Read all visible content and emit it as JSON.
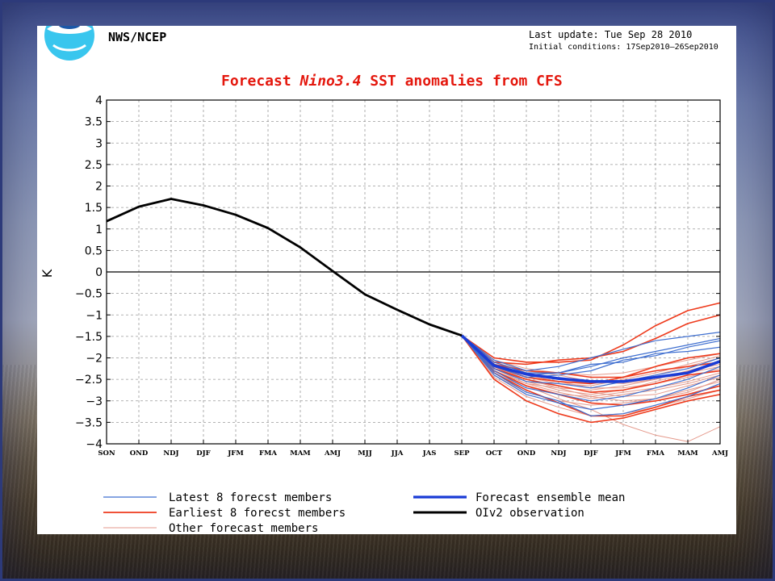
{
  "header": {
    "agency": "NWS/NCEP",
    "last_update": "Last update: Tue Sep 28 2010",
    "initial_conditions": "Initial conditions: 17Sep2010–26Sep2010"
  },
  "chart_data": {
    "type": "line",
    "title_part1": "Forecast ",
    "title_part2": "Nino3.4",
    "title_part3": " SST anomalies from CFS",
    "ylabel": "K",
    "ylim": [
      -4,
      4
    ],
    "yticks": [
      4,
      3.5,
      3,
      2.5,
      2,
      1.5,
      1,
      0.5,
      0,
      -0.5,
      -1,
      -1.5,
      -2,
      -2.5,
      -3,
      -3.5,
      -4
    ],
    "ytick_labels": [
      "4",
      "3.5",
      "3",
      "2.5",
      "2",
      "1.5",
      "1",
      "0.5",
      "0",
      "−0.5",
      "−1",
      "−1.5",
      "−2",
      "−2.5",
      "−3",
      "−3.5",
      "−4"
    ],
    "categories": [
      "SON",
      "OND",
      "NDJ",
      "DJF",
      "JFM",
      "FMA",
      "MAM",
      "AMJ",
      "MJJ",
      "JJA",
      "JAS",
      "SEP",
      "OCT",
      "OND",
      "NDJ",
      "DJF",
      "JFM",
      "FMA",
      "MAM",
      "AMJ"
    ],
    "grid": true,
    "legend_position": "bottom",
    "colors": {
      "observation": "#000000",
      "ensemble_mean": "#1a3cd6",
      "latest": "#3f6fd0",
      "earliest": "#ee3a1c",
      "other": "#e59a8c"
    },
    "legend": [
      {
        "key": "latest",
        "label": "Latest 8 forecst members"
      },
      {
        "key": "earliest",
        "label": "Earliest 8 forecst members"
      },
      {
        "key": "other",
        "label": "Other forecast members"
      },
      {
        "key": "ensemble_mean",
        "label": "Forecast ensemble mean"
      },
      {
        "key": "observation",
        "label": "OIv2 observation"
      }
    ],
    "forecast_x": [
      11,
      12,
      13,
      14,
      15,
      16,
      17,
      18,
      19
    ],
    "observation": {
      "name": "OIv2 observation",
      "values": [
        1.18,
        1.52,
        1.7,
        1.55,
        1.33,
        1.02,
        0.57,
        0.02,
        -0.52,
        -0.88,
        -1.22,
        -1.48
      ]
    },
    "ensemble_mean": {
      "name": "Forecast ensemble mean",
      "values": [
        -1.48,
        -2.18,
        -2.38,
        -2.48,
        -2.55,
        -2.55,
        -2.45,
        -2.35,
        -2.08
      ]
    },
    "latest_members": [
      [
        -1.48,
        -2.05,
        -2.3,
        -2.2,
        -2.0,
        -1.8,
        -1.6,
        -1.5,
        -1.4
      ],
      [
        -1.48,
        -2.15,
        -2.4,
        -2.35,
        -2.2,
        -2.0,
        -1.85,
        -1.7,
        -1.55
      ],
      [
        -1.48,
        -2.25,
        -2.55,
        -2.6,
        -2.7,
        -2.55,
        -2.4,
        -2.25,
        -2.0
      ],
      [
        -1.48,
        -2.3,
        -2.7,
        -2.85,
        -3.0,
        -2.9,
        -2.7,
        -2.5,
        -2.2
      ],
      [
        -1.48,
        -2.4,
        -2.85,
        -3.05,
        -3.2,
        -3.1,
        -2.95,
        -2.7,
        -2.4
      ],
      [
        -1.48,
        -2.35,
        -2.8,
        -3.0,
        -3.35,
        -3.3,
        -3.1,
        -2.9,
        -2.6
      ],
      [
        -1.48,
        -2.2,
        -2.45,
        -2.4,
        -2.3,
        -2.05,
        -1.95,
        -1.75,
        -1.6
      ],
      [
        -1.48,
        -2.1,
        -2.35,
        -2.35,
        -2.15,
        -2.1,
        -1.9,
        -1.85,
        -1.75
      ]
    ],
    "earliest_members": [
      [
        -1.48,
        -2.0,
        -2.1,
        -2.1,
        -2.05,
        -1.7,
        -1.25,
        -0.9,
        -0.72
      ],
      [
        -1.48,
        -2.1,
        -2.15,
        -2.05,
        -2.0,
        -1.85,
        -1.55,
        -1.2,
        -1.0
      ],
      [
        -1.48,
        -2.2,
        -2.45,
        -2.55,
        -2.6,
        -2.45,
        -2.2,
        -2.0,
        -1.9
      ],
      [
        -1.48,
        -2.35,
        -2.75,
        -3.05,
        -3.35,
        -3.35,
        -3.15,
        -2.9,
        -2.75
      ],
      [
        -1.48,
        -2.5,
        -3.0,
        -3.3,
        -3.5,
        -3.4,
        -3.2,
        -3.0,
        -2.85
      ],
      [
        -1.48,
        -2.25,
        -2.5,
        -2.65,
        -2.8,
        -2.75,
        -2.6,
        -2.4,
        -2.3
      ],
      [
        -1.48,
        -2.15,
        -2.3,
        -2.35,
        -2.45,
        -2.45,
        -2.3,
        -2.2,
        -2.1
      ],
      [
        -1.48,
        -2.3,
        -2.65,
        -2.85,
        -3.05,
        -3.1,
        -3.0,
        -2.85,
        -2.65
      ]
    ],
    "other_members": [
      [
        -1.48,
        -2.2,
        -2.5,
        -2.7,
        -2.9,
        -3.0,
        -2.95,
        -2.8,
        -2.5
      ],
      [
        -1.48,
        -2.3,
        -2.65,
        -2.95,
        -3.2,
        -3.55,
        -3.8,
        -3.95,
        -3.6
      ],
      [
        -1.48,
        -2.1,
        -2.3,
        -2.4,
        -2.55,
        -2.6,
        -2.5,
        -2.3,
        -2.1
      ],
      [
        -1.48,
        -2.25,
        -2.6,
        -2.8,
        -2.95,
        -2.85,
        -2.75,
        -2.6,
        -2.4
      ],
      [
        -1.48,
        -2.15,
        -2.4,
        -2.55,
        -2.7,
        -2.7,
        -2.6,
        -2.45,
        -2.25
      ],
      [
        -1.48,
        -2.35,
        -2.7,
        -2.85,
        -2.9,
        -2.8,
        -2.7,
        -2.55,
        -2.35
      ],
      [
        -1.48,
        -2.05,
        -2.25,
        -2.35,
        -2.4,
        -2.35,
        -2.2,
        -2.05,
        -1.9
      ],
      [
        -1.48,
        -2.4,
        -2.8,
        -3.0,
        -3.1,
        -3.05,
        -2.95,
        -2.75,
        -2.55
      ],
      [
        -1.48,
        -2.2,
        -2.55,
        -2.75,
        -2.85,
        -2.75,
        -2.55,
        -2.35,
        -2.2
      ],
      [
        -1.48,
        -2.1,
        -2.35,
        -2.5,
        -2.6,
        -2.55,
        -2.4,
        -2.2,
        -2.0
      ],
      [
        -1.48,
        -2.3,
        -2.6,
        -2.7,
        -2.75,
        -2.65,
        -2.5,
        -2.3,
        -2.15
      ],
      [
        -1.48,
        -2.45,
        -2.9,
        -3.15,
        -3.35,
        -3.3,
        -3.15,
        -2.95,
        -2.75
      ],
      [
        -1.48,
        -2.15,
        -2.45,
        -2.6,
        -2.65,
        -2.5,
        -2.35,
        -2.15,
        -1.95
      ],
      [
        -1.48,
        -2.25,
        -2.55,
        -2.65,
        -2.8,
        -2.9,
        -2.85,
        -2.65,
        -2.45
      ]
    ]
  }
}
